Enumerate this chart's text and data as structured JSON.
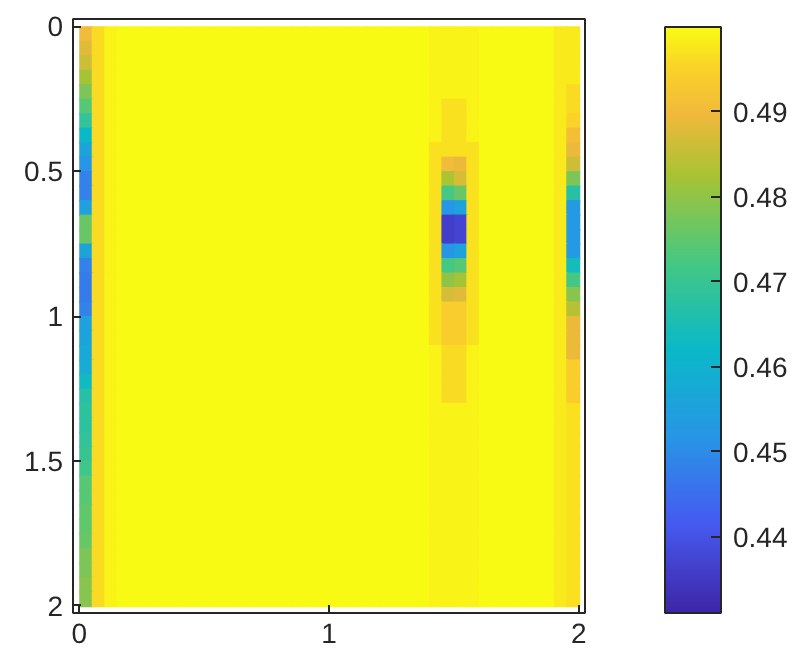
{
  "chart_data": {
    "type": "heatmap",
    "x": [
      0.025,
      0.075,
      0.125,
      0.175,
      0.225,
      0.275,
      0.325,
      0.375,
      0.425,
      0.475,
      0.525,
      0.575,
      0.625,
      0.675,
      0.725,
      0.775,
      0.825,
      0.875,
      0.925,
      0.975,
      1.025,
      1.075,
      1.125,
      1.175,
      1.225,
      1.275,
      1.325,
      1.375,
      1.425,
      1.475,
      1.525,
      1.575,
      1.625,
      1.675,
      1.725,
      1.775,
      1.825,
      1.875,
      1.925,
      1.975
    ],
    "y": [
      0.025,
      0.075,
      0.125,
      0.175,
      0.225,
      0.275,
      0.325,
      0.375,
      0.425,
      0.475,
      0.525,
      0.575,
      0.625,
      0.675,
      0.725,
      0.775,
      0.825,
      0.875,
      0.925,
      0.975,
      1.025,
      1.075,
      1.125,
      1.175,
      1.225,
      1.275,
      1.325,
      1.375,
      1.425,
      1.475,
      1.525,
      1.575,
      1.625,
      1.675,
      1.725,
      1.775,
      1.825,
      1.875,
      1.925,
      1.975
    ],
    "cells": [
      [
        0.49,
        0.496,
        0.499,
        0.5,
        0.5,
        0.5,
        0.5,
        0.5,
        0.5,
        0.5,
        0.5,
        0.5,
        0.5,
        0.5,
        0.5,
        0.5,
        0.5,
        0.5,
        0.5,
        0.5,
        0.5,
        0.5,
        0.5,
        0.5,
        0.5,
        0.5,
        0.5,
        0.5,
        0.499,
        0.499,
        0.499,
        0.499,
        0.5,
        0.5,
        0.5,
        0.5,
        0.5,
        0.5,
        0.498,
        0.498
      ],
      [
        0.488,
        0.496,
        0.499,
        0.5,
        0.5,
        0.5,
        0.5,
        0.5,
        0.5,
        0.5,
        0.5,
        0.5,
        0.5,
        0.5,
        0.5,
        0.5,
        0.5,
        0.5,
        0.5,
        0.5,
        0.5,
        0.5,
        0.5,
        0.5,
        0.5,
        0.5,
        0.5,
        0.5,
        0.499,
        0.499,
        0.499,
        0.499,
        0.5,
        0.5,
        0.5,
        0.5,
        0.5,
        0.5,
        0.498,
        0.498
      ],
      [
        0.486,
        0.496,
        0.499,
        0.5,
        0.5,
        0.5,
        0.5,
        0.5,
        0.5,
        0.5,
        0.5,
        0.5,
        0.5,
        0.5,
        0.5,
        0.5,
        0.5,
        0.5,
        0.5,
        0.5,
        0.5,
        0.5,
        0.5,
        0.5,
        0.5,
        0.5,
        0.5,
        0.5,
        0.499,
        0.499,
        0.499,
        0.499,
        0.5,
        0.5,
        0.5,
        0.5,
        0.5,
        0.5,
        0.498,
        0.498
      ],
      [
        0.482,
        0.496,
        0.499,
        0.5,
        0.5,
        0.5,
        0.5,
        0.5,
        0.5,
        0.5,
        0.5,
        0.5,
        0.5,
        0.5,
        0.5,
        0.5,
        0.5,
        0.5,
        0.5,
        0.5,
        0.5,
        0.5,
        0.5,
        0.5,
        0.5,
        0.5,
        0.5,
        0.5,
        0.499,
        0.499,
        0.499,
        0.499,
        0.5,
        0.5,
        0.5,
        0.5,
        0.5,
        0.5,
        0.498,
        0.498
      ],
      [
        0.478,
        0.496,
        0.499,
        0.5,
        0.5,
        0.5,
        0.5,
        0.5,
        0.5,
        0.5,
        0.5,
        0.5,
        0.5,
        0.5,
        0.5,
        0.5,
        0.5,
        0.5,
        0.5,
        0.5,
        0.5,
        0.5,
        0.5,
        0.5,
        0.5,
        0.5,
        0.5,
        0.5,
        0.499,
        0.499,
        0.499,
        0.499,
        0.5,
        0.5,
        0.5,
        0.5,
        0.5,
        0.5,
        0.498,
        0.496
      ],
      [
        0.474,
        0.496,
        0.499,
        0.5,
        0.5,
        0.5,
        0.5,
        0.5,
        0.5,
        0.5,
        0.5,
        0.5,
        0.5,
        0.5,
        0.5,
        0.5,
        0.5,
        0.5,
        0.5,
        0.5,
        0.5,
        0.5,
        0.5,
        0.5,
        0.5,
        0.5,
        0.5,
        0.5,
        0.499,
        0.497,
        0.497,
        0.499,
        0.5,
        0.5,
        0.5,
        0.5,
        0.5,
        0.5,
        0.498,
        0.496
      ],
      [
        0.469,
        0.496,
        0.499,
        0.5,
        0.5,
        0.5,
        0.5,
        0.5,
        0.5,
        0.5,
        0.5,
        0.5,
        0.5,
        0.5,
        0.5,
        0.5,
        0.5,
        0.5,
        0.5,
        0.5,
        0.5,
        0.5,
        0.5,
        0.5,
        0.5,
        0.5,
        0.5,
        0.5,
        0.499,
        0.497,
        0.497,
        0.499,
        0.5,
        0.5,
        0.5,
        0.5,
        0.5,
        0.5,
        0.498,
        0.495
      ],
      [
        0.462,
        0.496,
        0.499,
        0.5,
        0.5,
        0.5,
        0.5,
        0.5,
        0.5,
        0.5,
        0.5,
        0.5,
        0.5,
        0.5,
        0.5,
        0.5,
        0.5,
        0.5,
        0.5,
        0.5,
        0.5,
        0.5,
        0.5,
        0.5,
        0.5,
        0.5,
        0.5,
        0.5,
        0.499,
        0.497,
        0.497,
        0.499,
        0.5,
        0.5,
        0.5,
        0.5,
        0.5,
        0.5,
        0.498,
        0.491
      ],
      [
        0.456,
        0.496,
        0.499,
        0.5,
        0.5,
        0.5,
        0.5,
        0.5,
        0.5,
        0.5,
        0.5,
        0.5,
        0.5,
        0.5,
        0.5,
        0.5,
        0.5,
        0.5,
        0.5,
        0.5,
        0.5,
        0.5,
        0.5,
        0.5,
        0.5,
        0.5,
        0.5,
        0.5,
        0.497,
        0.497,
        0.497,
        0.497,
        0.5,
        0.5,
        0.5,
        0.5,
        0.5,
        0.5,
        0.498,
        0.489
      ],
      [
        0.452,
        0.496,
        0.499,
        0.5,
        0.5,
        0.5,
        0.5,
        0.5,
        0.5,
        0.5,
        0.5,
        0.5,
        0.5,
        0.5,
        0.5,
        0.5,
        0.5,
        0.5,
        0.5,
        0.5,
        0.5,
        0.5,
        0.5,
        0.5,
        0.5,
        0.5,
        0.5,
        0.5,
        0.497,
        0.49,
        0.489,
        0.497,
        0.5,
        0.5,
        0.5,
        0.5,
        0.5,
        0.5,
        0.498,
        0.486
      ],
      [
        0.448,
        0.496,
        0.499,
        0.5,
        0.5,
        0.5,
        0.5,
        0.5,
        0.5,
        0.5,
        0.5,
        0.5,
        0.5,
        0.5,
        0.5,
        0.5,
        0.5,
        0.5,
        0.5,
        0.5,
        0.5,
        0.5,
        0.5,
        0.5,
        0.5,
        0.5,
        0.5,
        0.5,
        0.497,
        0.483,
        0.487,
        0.497,
        0.5,
        0.5,
        0.5,
        0.5,
        0.5,
        0.5,
        0.498,
        0.478
      ],
      [
        0.448,
        0.496,
        0.499,
        0.5,
        0.5,
        0.5,
        0.5,
        0.5,
        0.5,
        0.5,
        0.5,
        0.5,
        0.5,
        0.5,
        0.5,
        0.5,
        0.5,
        0.5,
        0.5,
        0.5,
        0.5,
        0.5,
        0.5,
        0.5,
        0.5,
        0.5,
        0.5,
        0.5,
        0.497,
        0.472,
        0.476,
        0.497,
        0.5,
        0.5,
        0.5,
        0.5,
        0.5,
        0.5,
        0.498,
        0.467
      ],
      [
        0.455,
        0.496,
        0.499,
        0.5,
        0.5,
        0.5,
        0.5,
        0.5,
        0.5,
        0.5,
        0.5,
        0.5,
        0.5,
        0.5,
        0.5,
        0.5,
        0.5,
        0.5,
        0.5,
        0.5,
        0.5,
        0.5,
        0.5,
        0.5,
        0.5,
        0.5,
        0.5,
        0.5,
        0.497,
        0.452,
        0.455,
        0.497,
        0.5,
        0.5,
        0.5,
        0.5,
        0.5,
        0.5,
        0.498,
        0.453
      ],
      [
        0.476,
        0.496,
        0.499,
        0.5,
        0.5,
        0.5,
        0.5,
        0.5,
        0.5,
        0.5,
        0.5,
        0.5,
        0.5,
        0.5,
        0.5,
        0.5,
        0.5,
        0.5,
        0.5,
        0.5,
        0.5,
        0.5,
        0.5,
        0.5,
        0.5,
        0.5,
        0.5,
        0.5,
        0.497,
        0.436,
        0.437,
        0.497,
        0.5,
        0.5,
        0.5,
        0.5,
        0.5,
        0.5,
        0.498,
        0.453
      ],
      [
        0.476,
        0.496,
        0.499,
        0.5,
        0.5,
        0.5,
        0.5,
        0.5,
        0.5,
        0.5,
        0.5,
        0.5,
        0.5,
        0.5,
        0.5,
        0.5,
        0.5,
        0.5,
        0.5,
        0.5,
        0.5,
        0.5,
        0.5,
        0.5,
        0.5,
        0.5,
        0.5,
        0.5,
        0.497,
        0.436,
        0.437,
        0.497,
        0.5,
        0.5,
        0.5,
        0.5,
        0.5,
        0.5,
        0.498,
        0.453
      ],
      [
        0.456,
        0.496,
        0.499,
        0.5,
        0.5,
        0.5,
        0.5,
        0.5,
        0.5,
        0.5,
        0.5,
        0.5,
        0.5,
        0.5,
        0.5,
        0.5,
        0.5,
        0.5,
        0.5,
        0.5,
        0.5,
        0.5,
        0.5,
        0.5,
        0.5,
        0.5,
        0.5,
        0.5,
        0.497,
        0.452,
        0.455,
        0.497,
        0.5,
        0.5,
        0.5,
        0.5,
        0.5,
        0.5,
        0.498,
        0.453
      ],
      [
        0.448,
        0.496,
        0.499,
        0.5,
        0.5,
        0.5,
        0.5,
        0.5,
        0.5,
        0.5,
        0.5,
        0.5,
        0.5,
        0.5,
        0.5,
        0.5,
        0.5,
        0.5,
        0.5,
        0.5,
        0.5,
        0.5,
        0.5,
        0.5,
        0.5,
        0.5,
        0.5,
        0.5,
        0.497,
        0.472,
        0.474,
        0.497,
        0.5,
        0.5,
        0.5,
        0.5,
        0.5,
        0.5,
        0.498,
        0.464
      ],
      [
        0.447,
        0.496,
        0.499,
        0.5,
        0.5,
        0.5,
        0.5,
        0.5,
        0.5,
        0.5,
        0.5,
        0.5,
        0.5,
        0.5,
        0.5,
        0.5,
        0.5,
        0.5,
        0.5,
        0.5,
        0.5,
        0.5,
        0.5,
        0.5,
        0.5,
        0.5,
        0.5,
        0.5,
        0.497,
        0.48,
        0.482,
        0.497,
        0.5,
        0.5,
        0.5,
        0.5,
        0.5,
        0.5,
        0.498,
        0.472
      ],
      [
        0.447,
        0.496,
        0.499,
        0.5,
        0.5,
        0.5,
        0.5,
        0.5,
        0.5,
        0.5,
        0.5,
        0.5,
        0.5,
        0.5,
        0.5,
        0.5,
        0.5,
        0.5,
        0.5,
        0.5,
        0.5,
        0.5,
        0.5,
        0.5,
        0.5,
        0.5,
        0.5,
        0.5,
        0.497,
        0.487,
        0.488,
        0.497,
        0.5,
        0.5,
        0.5,
        0.5,
        0.5,
        0.5,
        0.498,
        0.479
      ],
      [
        0.448,
        0.496,
        0.499,
        0.5,
        0.5,
        0.5,
        0.5,
        0.5,
        0.5,
        0.5,
        0.5,
        0.5,
        0.5,
        0.5,
        0.5,
        0.5,
        0.5,
        0.5,
        0.5,
        0.5,
        0.5,
        0.5,
        0.5,
        0.5,
        0.5,
        0.5,
        0.5,
        0.5,
        0.497,
        0.494,
        0.494,
        0.497,
        0.5,
        0.5,
        0.5,
        0.5,
        0.5,
        0.5,
        0.498,
        0.484
      ],
      [
        0.455,
        0.496,
        0.499,
        0.5,
        0.5,
        0.5,
        0.5,
        0.5,
        0.5,
        0.5,
        0.5,
        0.5,
        0.5,
        0.5,
        0.5,
        0.5,
        0.5,
        0.5,
        0.5,
        0.5,
        0.5,
        0.5,
        0.5,
        0.5,
        0.5,
        0.5,
        0.5,
        0.5,
        0.497,
        0.494,
        0.494,
        0.497,
        0.5,
        0.5,
        0.5,
        0.5,
        0.5,
        0.5,
        0.498,
        0.489
      ],
      [
        0.456,
        0.496,
        0.499,
        0.5,
        0.5,
        0.5,
        0.5,
        0.5,
        0.5,
        0.5,
        0.5,
        0.5,
        0.5,
        0.5,
        0.5,
        0.5,
        0.5,
        0.5,
        0.5,
        0.5,
        0.5,
        0.5,
        0.5,
        0.5,
        0.5,
        0.5,
        0.5,
        0.5,
        0.497,
        0.494,
        0.494,
        0.497,
        0.5,
        0.5,
        0.5,
        0.5,
        0.5,
        0.5,
        0.498,
        0.489
      ],
      [
        0.457,
        0.496,
        0.499,
        0.5,
        0.5,
        0.5,
        0.5,
        0.5,
        0.5,
        0.5,
        0.5,
        0.5,
        0.5,
        0.5,
        0.5,
        0.5,
        0.5,
        0.5,
        0.5,
        0.5,
        0.5,
        0.5,
        0.5,
        0.5,
        0.5,
        0.5,
        0.5,
        0.5,
        0.499,
        0.496,
        0.496,
        0.499,
        0.5,
        0.5,
        0.5,
        0.5,
        0.5,
        0.5,
        0.498,
        0.489
      ],
      [
        0.458,
        0.496,
        0.499,
        0.5,
        0.5,
        0.5,
        0.5,
        0.5,
        0.5,
        0.5,
        0.5,
        0.5,
        0.5,
        0.5,
        0.5,
        0.5,
        0.5,
        0.5,
        0.5,
        0.5,
        0.5,
        0.5,
        0.5,
        0.5,
        0.5,
        0.5,
        0.5,
        0.5,
        0.499,
        0.496,
        0.496,
        0.499,
        0.5,
        0.5,
        0.5,
        0.5,
        0.5,
        0.5,
        0.498,
        0.494
      ],
      [
        0.463,
        0.496,
        0.499,
        0.5,
        0.5,
        0.5,
        0.5,
        0.5,
        0.5,
        0.5,
        0.5,
        0.5,
        0.5,
        0.5,
        0.5,
        0.5,
        0.5,
        0.5,
        0.5,
        0.5,
        0.5,
        0.5,
        0.5,
        0.5,
        0.5,
        0.5,
        0.5,
        0.5,
        0.499,
        0.496,
        0.496,
        0.499,
        0.5,
        0.5,
        0.5,
        0.5,
        0.5,
        0.5,
        0.498,
        0.494
      ],
      [
        0.467,
        0.496,
        0.499,
        0.5,
        0.5,
        0.5,
        0.5,
        0.5,
        0.5,
        0.5,
        0.5,
        0.5,
        0.5,
        0.5,
        0.5,
        0.5,
        0.5,
        0.5,
        0.5,
        0.5,
        0.5,
        0.5,
        0.5,
        0.5,
        0.5,
        0.5,
        0.5,
        0.5,
        0.499,
        0.496,
        0.496,
        0.499,
        0.5,
        0.5,
        0.5,
        0.5,
        0.5,
        0.5,
        0.498,
        0.494
      ],
      [
        0.468,
        0.496,
        0.499,
        0.5,
        0.5,
        0.5,
        0.5,
        0.5,
        0.5,
        0.5,
        0.5,
        0.5,
        0.5,
        0.5,
        0.5,
        0.5,
        0.5,
        0.5,
        0.5,
        0.5,
        0.5,
        0.5,
        0.5,
        0.5,
        0.5,
        0.5,
        0.5,
        0.5,
        0.499,
        0.499,
        0.499,
        0.499,
        0.5,
        0.5,
        0.5,
        0.5,
        0.5,
        0.5,
        0.498,
        0.497
      ],
      [
        0.468,
        0.496,
        0.499,
        0.5,
        0.5,
        0.5,
        0.5,
        0.5,
        0.5,
        0.5,
        0.5,
        0.5,
        0.5,
        0.5,
        0.5,
        0.5,
        0.5,
        0.5,
        0.5,
        0.5,
        0.5,
        0.5,
        0.5,
        0.5,
        0.5,
        0.5,
        0.5,
        0.5,
        0.499,
        0.499,
        0.499,
        0.499,
        0.5,
        0.5,
        0.5,
        0.5,
        0.5,
        0.5,
        0.498,
        0.497
      ],
      [
        0.469,
        0.496,
        0.499,
        0.5,
        0.5,
        0.5,
        0.5,
        0.5,
        0.5,
        0.5,
        0.5,
        0.5,
        0.5,
        0.5,
        0.5,
        0.5,
        0.5,
        0.5,
        0.5,
        0.5,
        0.5,
        0.5,
        0.5,
        0.5,
        0.5,
        0.5,
        0.5,
        0.5,
        0.499,
        0.499,
        0.499,
        0.499,
        0.5,
        0.5,
        0.5,
        0.5,
        0.5,
        0.5,
        0.498,
        0.497
      ],
      [
        0.47,
        0.496,
        0.499,
        0.5,
        0.5,
        0.5,
        0.5,
        0.5,
        0.5,
        0.5,
        0.5,
        0.5,
        0.5,
        0.5,
        0.5,
        0.5,
        0.5,
        0.5,
        0.5,
        0.5,
        0.5,
        0.5,
        0.5,
        0.5,
        0.5,
        0.5,
        0.5,
        0.5,
        0.499,
        0.499,
        0.499,
        0.499,
        0.5,
        0.5,
        0.5,
        0.5,
        0.5,
        0.5,
        0.498,
        0.497
      ],
      [
        0.471,
        0.496,
        0.499,
        0.5,
        0.5,
        0.5,
        0.5,
        0.5,
        0.5,
        0.5,
        0.5,
        0.5,
        0.5,
        0.5,
        0.5,
        0.5,
        0.5,
        0.5,
        0.5,
        0.5,
        0.5,
        0.5,
        0.5,
        0.5,
        0.5,
        0.5,
        0.5,
        0.5,
        0.499,
        0.499,
        0.499,
        0.499,
        0.5,
        0.5,
        0.5,
        0.5,
        0.5,
        0.5,
        0.498,
        0.497
      ],
      [
        0.474,
        0.496,
        0.499,
        0.5,
        0.5,
        0.5,
        0.5,
        0.5,
        0.5,
        0.5,
        0.5,
        0.5,
        0.5,
        0.5,
        0.5,
        0.5,
        0.5,
        0.5,
        0.5,
        0.5,
        0.5,
        0.5,
        0.5,
        0.5,
        0.5,
        0.5,
        0.5,
        0.5,
        0.499,
        0.499,
        0.499,
        0.499,
        0.5,
        0.5,
        0.5,
        0.5,
        0.5,
        0.5,
        0.498,
        0.497
      ],
      [
        0.474,
        0.496,
        0.499,
        0.5,
        0.5,
        0.5,
        0.5,
        0.5,
        0.5,
        0.5,
        0.5,
        0.5,
        0.5,
        0.5,
        0.5,
        0.5,
        0.5,
        0.5,
        0.5,
        0.5,
        0.5,
        0.5,
        0.5,
        0.5,
        0.5,
        0.5,
        0.5,
        0.5,
        0.499,
        0.499,
        0.499,
        0.499,
        0.5,
        0.5,
        0.5,
        0.5,
        0.5,
        0.5,
        0.498,
        0.497
      ],
      [
        0.475,
        0.496,
        0.499,
        0.5,
        0.5,
        0.5,
        0.5,
        0.5,
        0.5,
        0.5,
        0.5,
        0.5,
        0.5,
        0.5,
        0.5,
        0.5,
        0.5,
        0.5,
        0.5,
        0.5,
        0.5,
        0.5,
        0.5,
        0.5,
        0.5,
        0.5,
        0.5,
        0.5,
        0.499,
        0.499,
        0.499,
        0.499,
        0.5,
        0.5,
        0.5,
        0.5,
        0.5,
        0.5,
        0.498,
        0.497
      ],
      [
        0.475,
        0.496,
        0.499,
        0.5,
        0.5,
        0.5,
        0.5,
        0.5,
        0.5,
        0.5,
        0.5,
        0.5,
        0.5,
        0.5,
        0.5,
        0.5,
        0.5,
        0.5,
        0.5,
        0.5,
        0.5,
        0.5,
        0.5,
        0.5,
        0.5,
        0.5,
        0.5,
        0.5,
        0.499,
        0.499,
        0.499,
        0.499,
        0.5,
        0.5,
        0.5,
        0.5,
        0.5,
        0.5,
        0.498,
        0.497
      ],
      [
        0.476,
        0.496,
        0.499,
        0.5,
        0.5,
        0.5,
        0.5,
        0.5,
        0.5,
        0.5,
        0.5,
        0.5,
        0.5,
        0.5,
        0.5,
        0.5,
        0.5,
        0.5,
        0.5,
        0.5,
        0.5,
        0.5,
        0.5,
        0.5,
        0.5,
        0.5,
        0.5,
        0.5,
        0.499,
        0.499,
        0.499,
        0.499,
        0.5,
        0.5,
        0.5,
        0.5,
        0.5,
        0.5,
        0.498,
        0.497
      ],
      [
        0.478,
        0.496,
        0.499,
        0.5,
        0.5,
        0.5,
        0.5,
        0.5,
        0.5,
        0.5,
        0.5,
        0.5,
        0.5,
        0.5,
        0.5,
        0.5,
        0.5,
        0.5,
        0.5,
        0.5,
        0.5,
        0.5,
        0.5,
        0.5,
        0.5,
        0.5,
        0.5,
        0.5,
        0.499,
        0.499,
        0.499,
        0.499,
        0.5,
        0.5,
        0.5,
        0.5,
        0.5,
        0.5,
        0.498,
        0.497
      ],
      [
        0.478,
        0.496,
        0.499,
        0.5,
        0.5,
        0.5,
        0.5,
        0.5,
        0.5,
        0.5,
        0.5,
        0.5,
        0.5,
        0.5,
        0.5,
        0.5,
        0.5,
        0.5,
        0.5,
        0.5,
        0.5,
        0.5,
        0.5,
        0.5,
        0.5,
        0.5,
        0.5,
        0.5,
        0.499,
        0.499,
        0.499,
        0.499,
        0.5,
        0.5,
        0.5,
        0.5,
        0.5,
        0.5,
        0.498,
        0.497
      ],
      [
        0.479,
        0.496,
        0.499,
        0.5,
        0.5,
        0.5,
        0.5,
        0.5,
        0.5,
        0.5,
        0.5,
        0.5,
        0.5,
        0.5,
        0.5,
        0.5,
        0.5,
        0.5,
        0.5,
        0.5,
        0.5,
        0.5,
        0.5,
        0.5,
        0.5,
        0.5,
        0.5,
        0.5,
        0.499,
        0.499,
        0.499,
        0.499,
        0.5,
        0.5,
        0.5,
        0.5,
        0.5,
        0.5,
        0.498,
        0.497
      ],
      [
        0.479,
        0.496,
        0.499,
        0.5,
        0.5,
        0.5,
        0.5,
        0.5,
        0.5,
        0.5,
        0.5,
        0.5,
        0.5,
        0.5,
        0.5,
        0.5,
        0.5,
        0.5,
        0.5,
        0.5,
        0.5,
        0.5,
        0.5,
        0.5,
        0.5,
        0.5,
        0.5,
        0.5,
        0.499,
        0.499,
        0.499,
        0.499,
        0.5,
        0.5,
        0.5,
        0.5,
        0.5,
        0.5,
        0.498,
        0.497
      ]
    ],
    "xlim": [
      -0.025,
      2.025
    ],
    "xticks": [
      0,
      1,
      2
    ],
    "ylim": [
      2.025,
      -0.025
    ],
    "yticks": [
      0,
      0.5,
      1,
      1.5,
      2
    ],
    "clim": [
      0.431,
      0.5
    ],
    "cticks": [
      0.44,
      0.45,
      0.46,
      0.47,
      0.48,
      0.49
    ]
  }
}
